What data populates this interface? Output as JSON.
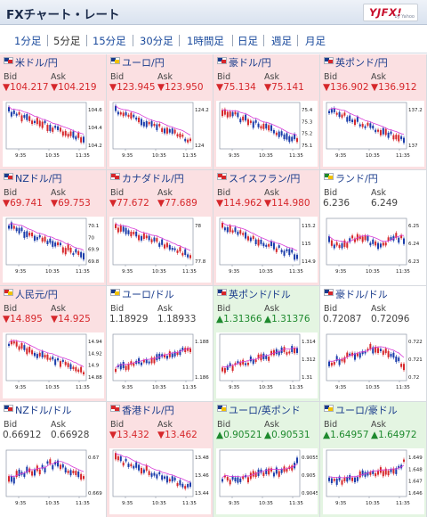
{
  "app": {
    "title": "FXチャート・レート",
    "logo": "YJFX!",
    "logo_sub": "by Yahoo"
  },
  "tabs": [
    {
      "label": "1分足",
      "active": false
    },
    {
      "label": "5分足",
      "active": true
    },
    {
      "label": "15分足",
      "active": false
    },
    {
      "label": "30分足",
      "active": false
    },
    {
      "label": "1時間足",
      "active": false
    },
    {
      "label": "日足",
      "active": false
    },
    {
      "label": "週足",
      "active": false
    },
    {
      "label": "月足",
      "active": false
    }
  ],
  "labels": {
    "bid": "Bid",
    "ask": "Ask"
  },
  "colors": {
    "down": "#d6272b",
    "up": "#1e8a2e",
    "bull": "#d6272b",
    "bear": "#1a3caa",
    "ma": "#d83ad8"
  },
  "pairs": [
    {
      "name": "米ドル/円",
      "flag": "us-flag",
      "status": "down",
      "bid": "▼104.217",
      "ask": "▼104.219",
      "ticks": [
        "104.6",
        "104.4",
        "104.2"
      ],
      "times": [
        "9:35",
        "10:35",
        "11:35"
      ],
      "trend": "down"
    },
    {
      "name": "ユーロ/円",
      "flag": "eu-flag",
      "status": "down",
      "bid": "▼123.945",
      "ask": "▼123.950",
      "ticks": [
        "124.2",
        "124"
      ],
      "times": [
        "9:35",
        "10:35",
        "11:35"
      ],
      "trend": "down"
    },
    {
      "name": "豪ドル/円",
      "flag": "au-flag",
      "status": "down",
      "bid": "▼75.134",
      "ask": "▼75.141",
      "ticks": [
        "75.4",
        "75.3",
        "75.2",
        "75.1"
      ],
      "times": [
        "9:35",
        "10:35",
        "11:35"
      ],
      "trend": "down"
    },
    {
      "name": "英ポンド/円",
      "flag": "gb-flag",
      "status": "down",
      "bid": "▼136.902",
      "ask": "▼136.912",
      "ticks": [
        "137.2",
        "137"
      ],
      "times": [
        "9:35",
        "10:35",
        "11:35"
      ],
      "trend": "down"
    },
    {
      "name": "NZドル/円",
      "flag": "nz-flag",
      "status": "down",
      "bid": "▼69.741",
      "ask": "▼69.753",
      "ticks": [
        "70.1",
        "70",
        "69.9",
        "69.8"
      ],
      "times": [
        "9:35",
        "10:35",
        "11:35"
      ],
      "trend": "down"
    },
    {
      "name": "カナダドル/円",
      "flag": "ca-flag",
      "status": "down",
      "bid": "▼77.672",
      "ask": "▼77.689",
      "ticks": [
        "78",
        "77.8"
      ],
      "times": [
        "9:35",
        "10:35",
        "11:35"
      ],
      "trend": "down"
    },
    {
      "name": "スイスフラン/円",
      "flag": "ch-flag",
      "status": "down",
      "bid": "▼114.962",
      "ask": "▼114.980",
      "ticks": [
        "115.2",
        "115",
        "114.9"
      ],
      "times": [
        "9:35",
        "10:35",
        "11:35"
      ],
      "trend": "down"
    },
    {
      "name": "ランド/円",
      "flag": "za-flag",
      "status": "flat",
      "bid": "6.236",
      "ask": "6.249",
      "ticks": [
        "6.25",
        "6.24",
        "6.23"
      ],
      "times": [
        "9:35",
        "10:35",
        "11:35"
      ],
      "trend": "flat"
    },
    {
      "name": "人民元/円",
      "flag": "cn-flag",
      "status": "down",
      "bid": "▼14.895",
      "ask": "▼14.925",
      "ticks": [
        "14.94",
        "14.92",
        "14.9",
        "14.88"
      ],
      "times": [
        "9:35",
        "10:35",
        "11:35"
      ],
      "trend": "down"
    },
    {
      "name": "ユーロ/ドル",
      "flag": "eu-flag",
      "status": "flat",
      "bid": "1.18929",
      "ask": "1.18933",
      "ticks": [
        "1.188",
        "1.186"
      ],
      "times": [
        "9:35",
        "10:35",
        "11:35"
      ],
      "trend": "up"
    },
    {
      "name": "英ポンド/ドル",
      "flag": "gb-flag",
      "status": "up",
      "bid": "▲1.31366",
      "ask": "▲1.31376",
      "ticks": [
        "1.314",
        "1.312",
        "1.31"
      ],
      "times": [
        "9:35",
        "10:35",
        "11:35"
      ],
      "trend": "up"
    },
    {
      "name": "豪ドル/ドル",
      "flag": "au-flag",
      "status": "flat",
      "bid": "0.72087",
      "ask": "0.72096",
      "ticks": [
        "0.722",
        "0.721",
        "0.72"
      ],
      "times": [
        "9:35",
        "10:35",
        "11:35"
      ],
      "trend": "hump"
    },
    {
      "name": "NZドル/ドル",
      "flag": "nz-flag",
      "status": "flat",
      "bid": "0.66912",
      "ask": "0.66928",
      "ticks": [
        "0.67",
        "0.669"
      ],
      "times": [
        "9:35",
        "10:35",
        "11:35"
      ],
      "trend": "hump"
    },
    {
      "name": "香港ドル/円",
      "flag": "hk-flag",
      "status": "down",
      "bid": "▼13.432",
      "ask": "▼13.462",
      "ticks": [
        "13.48",
        "13.46",
        "13.44"
      ],
      "times": [
        "9:35",
        "10:35",
        "11:35"
      ],
      "trend": "down"
    },
    {
      "name": "ユーロ/英ポンド",
      "flag": "eu-flag",
      "status": "up",
      "bid": "▲0.90521",
      "ask": "▲0.90531",
      "ticks": [
        "0.9055",
        "0.905",
        "0.9045"
      ],
      "times": [
        "9:35",
        "10:35",
        "11:35"
      ],
      "trend": "upend"
    },
    {
      "name": "ユーロ/豪ドル",
      "flag": "eu-flag",
      "status": "up",
      "bid": "▲1.64957",
      "ask": "▲1.64972",
      "ticks": [
        "1.649",
        "1.648",
        "1.647",
        "1.646"
      ],
      "times": [
        "9:35",
        "10:35",
        "11:35"
      ],
      "trend": "upend"
    }
  ]
}
